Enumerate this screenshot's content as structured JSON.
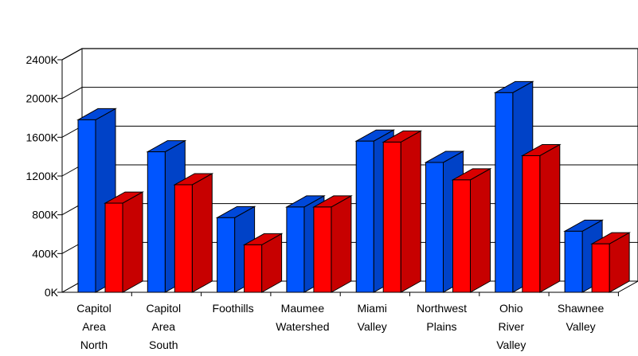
{
  "chart_data": {
    "type": "bar",
    "style": "3d-clustered-column",
    "title": "",
    "xlabel": "",
    "ylabel": "",
    "ylim": [
      0,
      2400000
    ],
    "y_ticks": [
      "0K",
      "400K",
      "800K",
      "1200K",
      "1600K",
      "2000K",
      "2400K"
    ],
    "gridlines": true,
    "legend": "none",
    "categories": [
      [
        "Capitol",
        "Area",
        "North"
      ],
      [
        "Capitol",
        "Area",
        "South"
      ],
      [
        "Foothills"
      ],
      [
        "Maumee",
        "Watershed"
      ],
      [
        "Miami",
        "Valley"
      ],
      [
        "Northwest",
        "Plains"
      ],
      [
        "Ohio",
        "River",
        "Valley"
      ],
      [
        "Shawnee",
        "Valley"
      ]
    ],
    "series": [
      {
        "color": "#0055ff",
        "values": [
          1780000,
          1450000,
          770000,
          880000,
          1560000,
          1340000,
          2060000,
          630000
        ]
      },
      {
        "color": "#ff0000",
        "values": [
          920000,
          1110000,
          490000,
          880000,
          1550000,
          1160000,
          1410000,
          500000
        ]
      }
    ]
  }
}
